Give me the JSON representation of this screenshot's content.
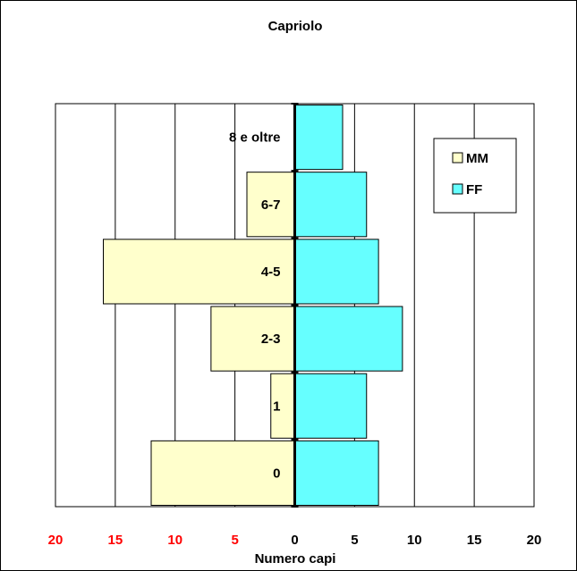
{
  "chart_data": {
    "type": "bar",
    "orientation": "horizontal",
    "title": "Capriolo",
    "xlabel": "Numero capi",
    "ylabel": "",
    "categories": [
      "0",
      "1",
      "2-3",
      "4-5",
      "6-7",
      "8 e oltre"
    ],
    "series": [
      {
        "name": "MM",
        "values": [
          12,
          2,
          7,
          16,
          4,
          0
        ],
        "direction": "left",
        "color": "#ffffcc"
      },
      {
        "name": "FF",
        "values": [
          7,
          6,
          9,
          7,
          6,
          4
        ],
        "direction": "right",
        "color": "#66ffff"
      }
    ],
    "xlim": [
      -20,
      20
    ],
    "x_ticks": [
      {
        "value": -20,
        "label": "20",
        "color": "#ff0000"
      },
      {
        "value": -15,
        "label": "15",
        "color": "#ff0000"
      },
      {
        "value": -10,
        "label": "10",
        "color": "#ff0000"
      },
      {
        "value": -5,
        "label": "5",
        "color": "#ff0000"
      },
      {
        "value": 0,
        "label": "0",
        "color": "#000000"
      },
      {
        "value": 5,
        "label": "5",
        "color": "#000000"
      },
      {
        "value": 10,
        "label": "10",
        "color": "#000000"
      },
      {
        "value": 15,
        "label": "15",
        "color": "#000000"
      },
      {
        "value": 20,
        "label": "20",
        "color": "#000000"
      }
    ],
    "grid": true,
    "legend_position": "top-right"
  }
}
